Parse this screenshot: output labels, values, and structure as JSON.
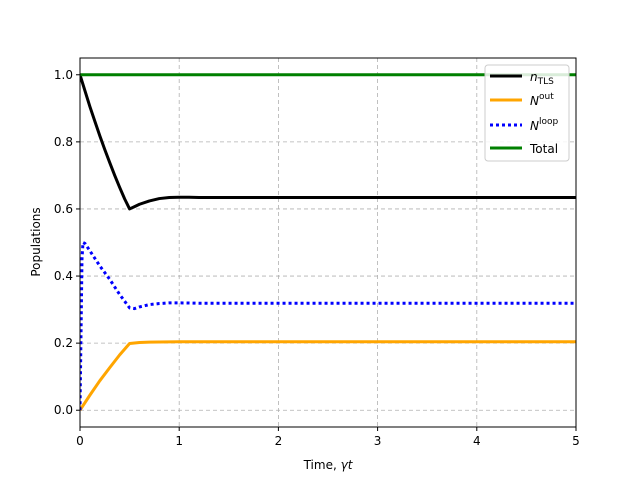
{
  "chart_data": {
    "type": "line",
    "xlabel_main": "Time, ",
    "xlabel_symbol": "γt",
    "ylabel": "Populations",
    "xlim": [
      0,
      5
    ],
    "ylim": [
      -0.05,
      1.05
    ],
    "xticks": [
      0,
      1,
      2,
      3,
      4,
      5
    ],
    "xtick_labels": [
      "0",
      "1",
      "2",
      "3",
      "4",
      "5"
    ],
    "yticks": [
      0.0,
      0.2,
      0.4,
      0.6,
      0.8,
      1.0
    ],
    "ytick_labels": [
      "0.0",
      "0.2",
      "0.4",
      "0.6",
      "0.8",
      "1.0"
    ],
    "grid": true,
    "legend_position": "top-right",
    "series": [
      {
        "name": "n_TLS",
        "label_main": "n",
        "label_sub": "TLS",
        "color": "#000000",
        "style": "solid",
        "x": [
          0,
          0.05,
          0.1,
          0.15,
          0.2,
          0.25,
          0.3,
          0.35,
          0.4,
          0.45,
          0.5,
          0.55,
          0.6,
          0.7,
          0.8,
          0.9,
          1.0,
          1.1,
          1.2,
          1.5,
          2,
          3,
          4,
          5
        ],
        "y": [
          1.0,
          0.952,
          0.905,
          0.861,
          0.818,
          0.777,
          0.738,
          0.7,
          0.664,
          0.63,
          0.6,
          0.607,
          0.614,
          0.624,
          0.631,
          0.634,
          0.635,
          0.635,
          0.634,
          0.634,
          0.634,
          0.634,
          0.634,
          0.634
        ]
      },
      {
        "name": "N^out",
        "label_main": "N",
        "label_sup": "out",
        "color": "#ffa500",
        "style": "solid",
        "x": [
          0,
          0.1,
          0.2,
          0.3,
          0.4,
          0.5,
          0.6,
          0.7,
          1,
          2,
          3,
          4,
          5
        ],
        "y": [
          0.0,
          0.045,
          0.088,
          0.127,
          0.165,
          0.199,
          0.202,
          0.203,
          0.204,
          0.204,
          0.204,
          0.204,
          0.204
        ]
      },
      {
        "name": "N^loop",
        "label_main": "N",
        "label_sup": "loop",
        "color": "#0000ff",
        "style": "dotted",
        "x": [
          0,
          0.02,
          0.03,
          0.05,
          0.1,
          0.2,
          0.3,
          0.4,
          0.5,
          0.55,
          0.6,
          0.7,
          0.8,
          0.9,
          1.0,
          1.2,
          2,
          3,
          4,
          5
        ],
        "y": [
          0.0,
          0.45,
          0.5,
          0.497,
          0.475,
          0.43,
          0.39,
          0.345,
          0.305,
          0.303,
          0.308,
          0.315,
          0.318,
          0.32,
          0.32,
          0.319,
          0.319,
          0.319,
          0.319,
          0.319
        ]
      },
      {
        "name": "Total",
        "label_main": "Total",
        "color": "#008000",
        "style": "solid",
        "x": [
          0,
          5
        ],
        "y": [
          1.0,
          1.0
        ]
      }
    ]
  }
}
